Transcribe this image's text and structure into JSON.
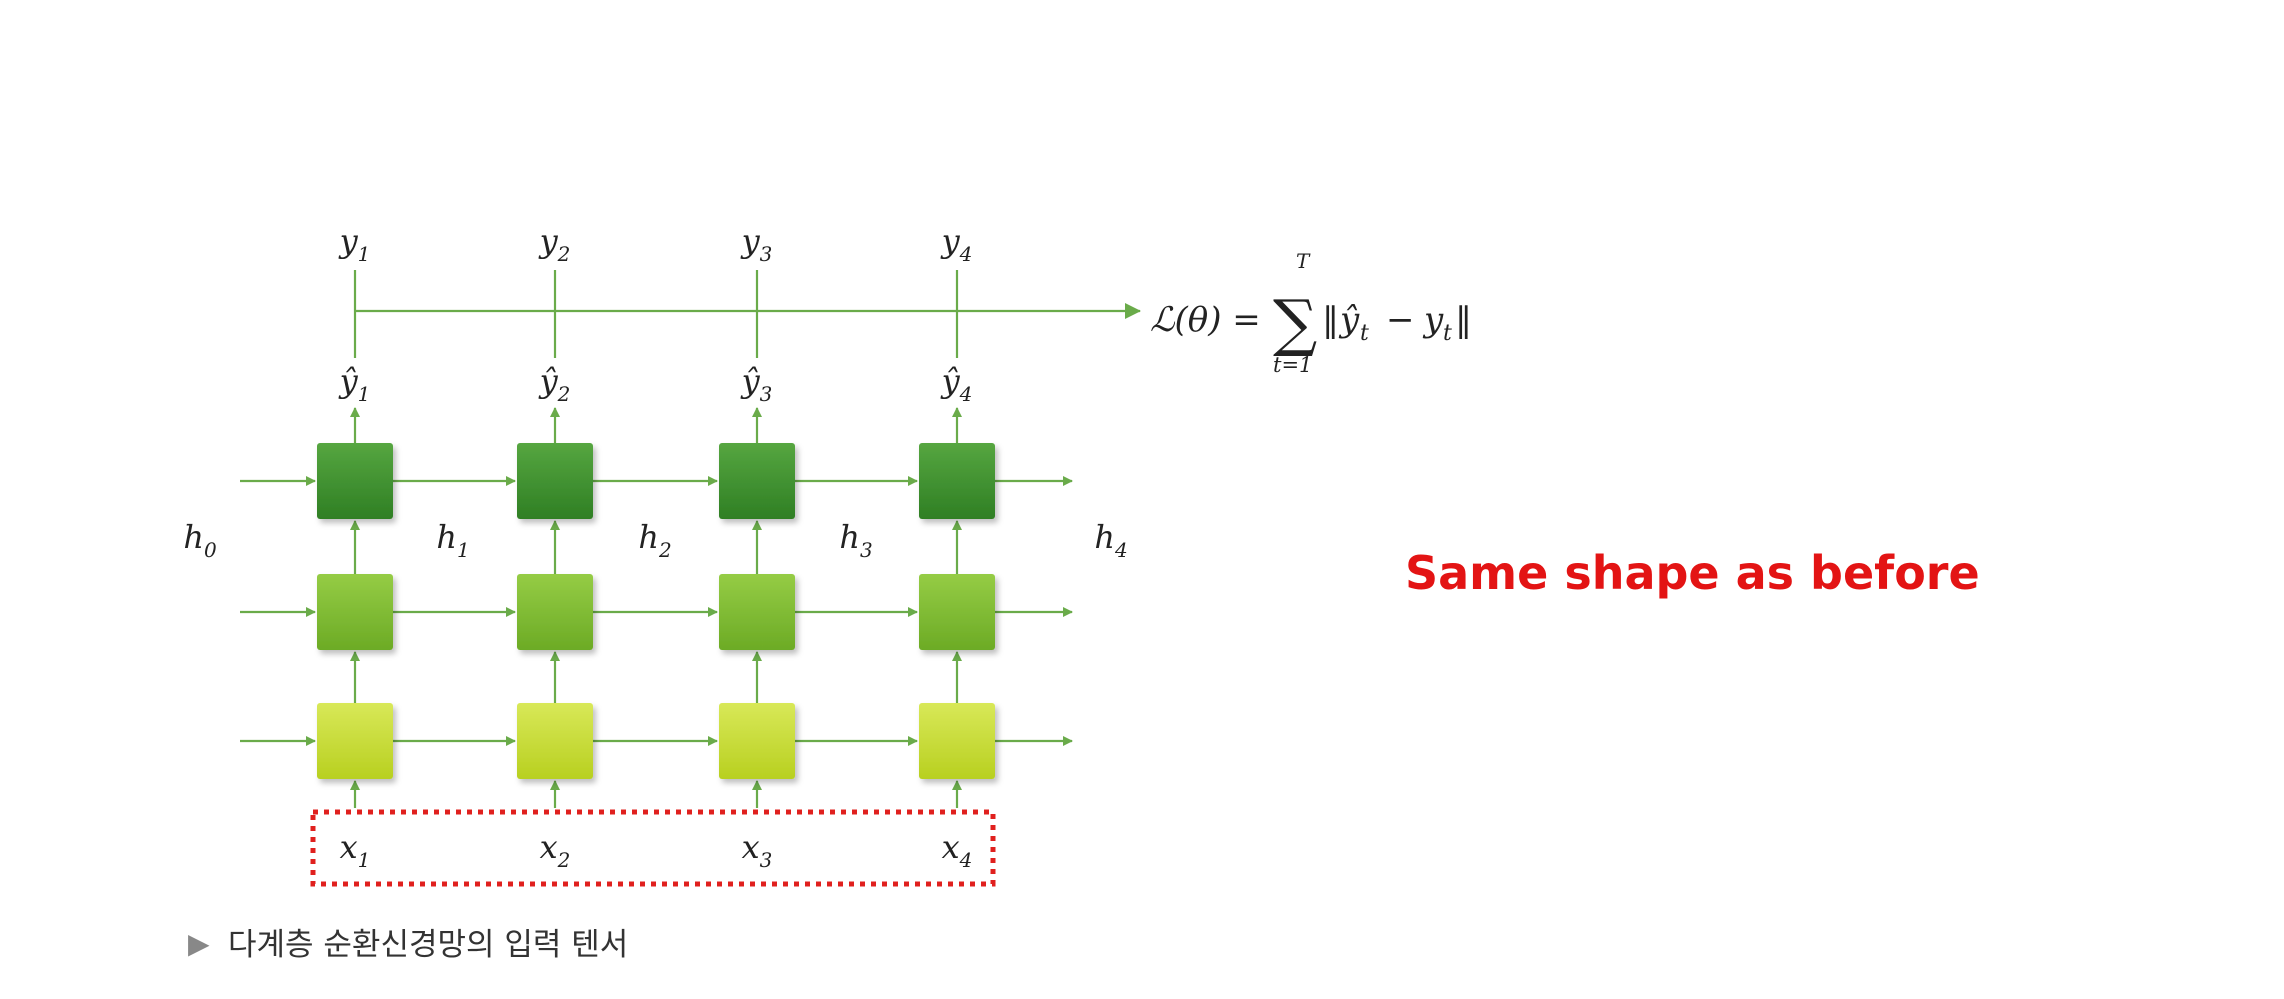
{
  "diagram": {
    "title": "",
    "outputs": [
      {
        "base": "y",
        "sub": "1"
      },
      {
        "base": "y",
        "sub": "2"
      },
      {
        "base": "y",
        "sub": "3"
      },
      {
        "base": "y",
        "sub": "4"
      }
    ],
    "predictions": [
      {
        "base": "ŷ",
        "sub": "1"
      },
      {
        "base": "ŷ",
        "sub": "2"
      },
      {
        "base": "ŷ",
        "sub": "3"
      },
      {
        "base": "ŷ",
        "sub": "4"
      }
    ],
    "inputs": [
      {
        "base": "x",
        "sub": "1"
      },
      {
        "base": "x",
        "sub": "2"
      },
      {
        "base": "x",
        "sub": "3"
      },
      {
        "base": "x",
        "sub": "4"
      }
    ],
    "hidden_states": [
      {
        "base": "h",
        "sub": "0"
      },
      {
        "base": "h",
        "sub": "1"
      },
      {
        "base": "h",
        "sub": "2"
      },
      {
        "base": "h",
        "sub": "3"
      },
      {
        "base": "h",
        "sub": "4"
      }
    ],
    "loss": {
      "lhs": "ℒ(θ) =",
      "sum_upper": "T",
      "sum_lower": "t=1",
      "open": "‖",
      "yhat": "ŷ",
      "yhat_sub": "t",
      "minus": "−",
      "y": "y",
      "y_sub": "t",
      "close": "‖"
    },
    "layers": 3,
    "colors": {
      "arrow": "#6aab4a",
      "top_layer": "#3f9130",
      "mid_layer": "#7fbf2e",
      "bottom_layer": "#c6dc2c",
      "highlight_box": "#e0201e"
    }
  },
  "callout": "Same shape as before",
  "caption": {
    "marker": "▶",
    "text": "다계층 순환신경망의 입력 텐서"
  }
}
